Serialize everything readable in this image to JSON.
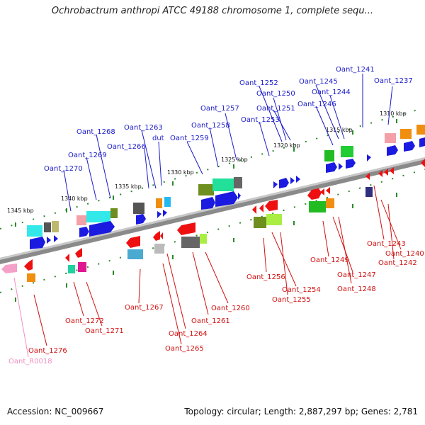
{
  "title": "Ochrobactrum anthropi ATCC 49188 chromosome 1, complete sequ...",
  "footer": {
    "accession": "Accession: NC_009667",
    "summary": "Topology: circular; Length: 2,887,297 bp; Genes: 2,781"
  },
  "scale_labels": [
    "1310 kbp",
    "1315 kbp",
    "1320 kbp",
    "1325 kbp",
    "1330 kbp",
    "1335 kbp",
    "1340 kbp",
    "1345 kbp"
  ],
  "gene_labels": {
    "forward": [
      "Oant_1241",
      "Oant_1237",
      "Oant_1252",
      "Oant_1245",
      "Oant_1250",
      "Oant_1244",
      "Oant_1251",
      "Oant_1246",
      "Oant_1253",
      "Oant_1257",
      "Oant_1258",
      "Oant_1263",
      "Oant_1268",
      "Oant_1266",
      "dut",
      "Oant_1259",
      "Oant_1269",
      "Oant_1270"
    ],
    "reverse": [
      "Oant_1243",
      "Oant_1240",
      "Oant_1242",
      "Oant_1249",
      "Oant_1247",
      "Oant_1248",
      "Oant_1256",
      "Oant_1254",
      "Oant_1255",
      "Oant_1260",
      "Oant_1261",
      "Oant_1267",
      "Oant_1264",
      "Oant_1265",
      "Oant_1272",
      "Oant_1271",
      "Oant_1276"
    ],
    "rna": [
      "Oant_R0018"
    ]
  },
  "colors": {
    "forward_label": "#1a1ac8",
    "reverse_label": "#d01010",
    "rna_label": "#f090c0",
    "backbone": "#8a8a8a",
    "cds_forward": "#1a1ae0",
    "cds_reverse": "#ee1010",
    "tick": "#2a8a2a"
  }
}
